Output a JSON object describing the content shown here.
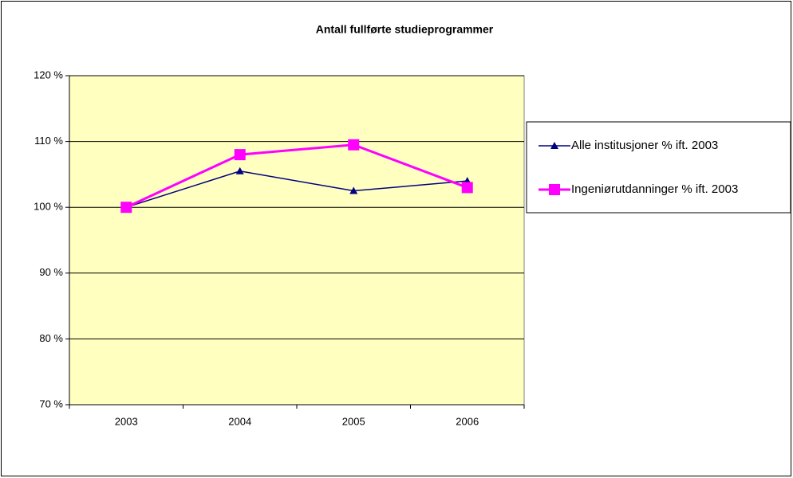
{
  "chart_data": {
    "type": "line",
    "title": "Antall fullførte studieprogrammer",
    "categories": [
      "2003",
      "2004",
      "2005",
      "2006"
    ],
    "series": [
      {
        "name": "Alle institusjoner % ift. 2003",
        "color": "#000080",
        "marker": "triangle",
        "values": [
          100,
          105.5,
          102.5,
          104
        ]
      },
      {
        "name": "Ingeniørutdanninger % ift. 2003",
        "color": "#ff00ff",
        "marker": "square",
        "values": [
          100,
          108,
          109.5,
          103
        ]
      }
    ],
    "ylim": [
      70,
      120
    ],
    "yticks": [
      {
        "value": 70,
        "label": "70 %"
      },
      {
        "value": 80,
        "label": "80 %"
      },
      {
        "value": 90,
        "label": "90 %"
      },
      {
        "value": 100,
        "label": "100 %"
      },
      {
        "value": 110,
        "label": "110 %"
      },
      {
        "value": 120,
        "label": "120 %"
      }
    ],
    "grid": true,
    "legend": "right",
    "plot_background": "#ffffc0"
  }
}
